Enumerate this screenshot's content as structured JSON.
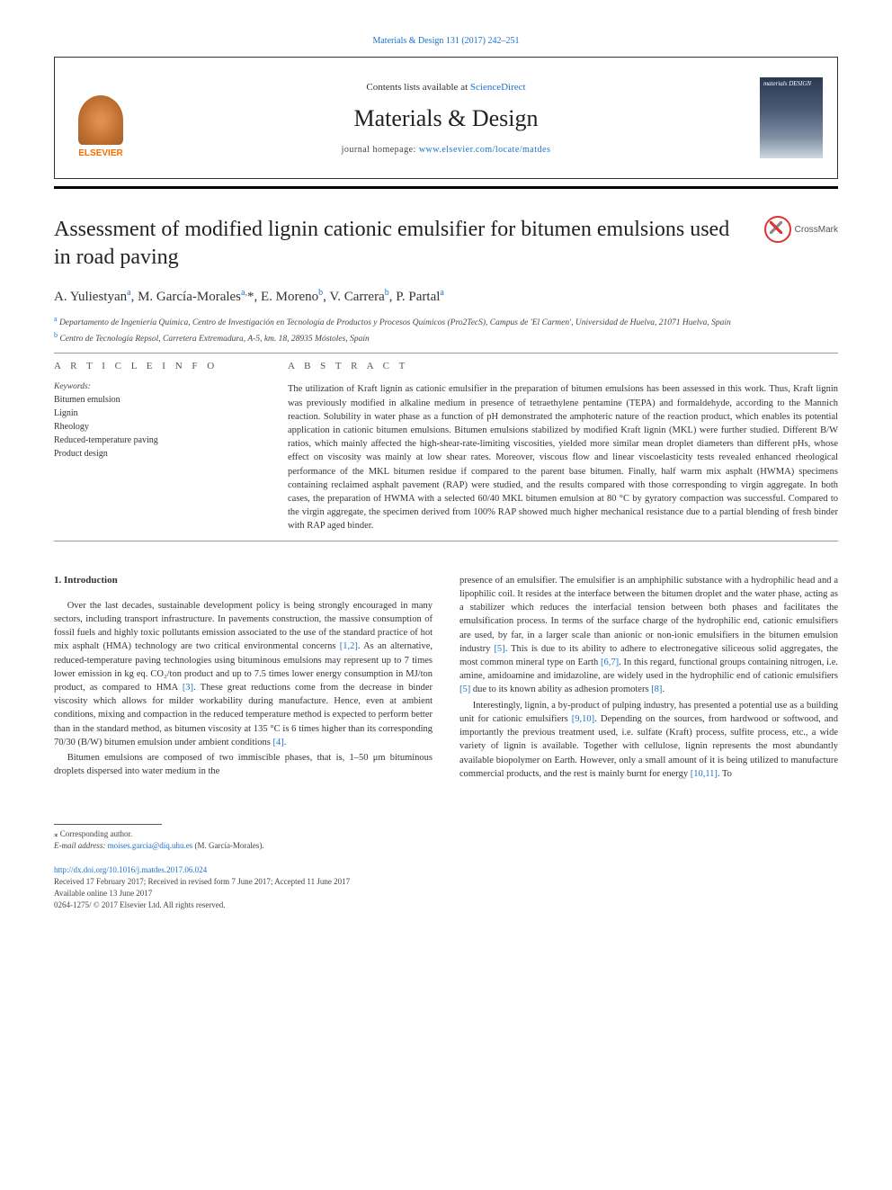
{
  "running_header": "Materials & Design 131 (2017) 242–251",
  "topbox": {
    "contents_prefix": "Contents lists available at ",
    "contents_link": "ScienceDirect",
    "journal_title": "Materials & Design",
    "homepage_prefix": "journal homepage: ",
    "homepage_link": "www.elsevier.com/locate/matdes",
    "publisher_name": "ELSEVIER"
  },
  "crossmark_label": "CrossMark",
  "article": {
    "title": "Assessment of modified lignin cationic emulsifier for bitumen emulsions used in road paving",
    "authors_html": "A. Yuliestyan<sup>a</sup>, M. García-Morales<sup>a,</sup>*, E. Moreno<sup>b</sup>, V. Carrera<sup>b</sup>, P. Partal<sup>a</sup>",
    "affiliations": [
      {
        "sup": "a",
        "text": "Departamento de Ingeniería Química, Centro de Investigación en Tecnología de Productos y Procesos Químicos (Pro2TecS), Campus de 'El Carmen', Universidad de Huelva, 21071 Huelva, Spain"
      },
      {
        "sup": "b",
        "text": "Centro de Tecnología Repsol, Carretera Extremadura, A-5, km. 18, 28935 Móstoles, Spain"
      }
    ]
  },
  "info": {
    "section_label": "A R T I C L E   I N F O",
    "keywords_label": "Keywords:",
    "keywords": [
      "Bitumen emulsion",
      "Lignin",
      "Rheology",
      "Reduced-temperature paving",
      "Product design"
    ]
  },
  "abstract": {
    "section_label": "A B S T R A C T",
    "text": "The utilization of Kraft lignin as cationic emulsifier in the preparation of bitumen emulsions has been assessed in this work. Thus, Kraft lignin was previously modified in alkaline medium in presence of tetraethylene pentamine (TEPA) and formaldehyde, according to the Mannich reaction. Solubility in water phase as a function of pH demonstrated the amphoteric nature of the reaction product, which enables its potential application in cationic bitumen emulsions. Bitumen emulsions stabilized by modified Kraft lignin (MKL) were further studied. Different B/W ratios, which mainly affected the high-shear-rate-limiting viscosities, yielded more similar mean droplet diameters than different pHs, whose effect on viscosity was mainly at low shear rates. Moreover, viscous flow and linear viscoelasticity tests revealed enhanced rheological performance of the MKL bitumen residue if compared to the parent base bitumen. Finally, half warm mix asphalt (HWMA) specimens containing reclaimed asphalt pavement (RAP) were studied, and the results compared with those corresponding to virgin aggregate. In both cases, the preparation of HWMA with a selected 60/40 MKL bitumen emulsion at 80 °C by gyratory compaction was successful. Compared to the virgin aggregate, the specimen derived from 100% RAP showed much higher mechanical resistance due to a partial blending of fresh binder with RAP aged binder."
  },
  "body": {
    "section_number_title": "1. Introduction",
    "left_p1": "Over the last decades, sustainable development policy is being strongly encouraged in many sectors, including transport infrastructure. In pavements construction, the massive consumption of fossil fuels and highly toxic pollutants emission associated to the use of the standard practice of hot mix asphalt (HMA) technology are two critical environmental concerns ",
    "left_p1_cite": "[1,2]",
    "left_p1_cont": ". As an alternative, reduced-temperature paving technologies using bituminous emulsions may represent up to 7 times lower emission in kg eq. CO₂/ton product and up to 7.5 times lower energy consumption in MJ/ton product, as compared to HMA ",
    "left_p1_cite2": "[3]",
    "left_p1_cont2": ". These great reductions come from the decrease in binder viscosity which allows for milder workability during manufacture. Hence, even at ambient conditions, mixing and compaction in the reduced temperature method is expected to perform better than in the standard method, as bitumen viscosity at 135 °C is 6 times higher than its corresponding 70/30 (B/W) bitumen emulsion under ambient conditions ",
    "left_p1_cite3": "[4]",
    "left_p1_end": ".",
    "left_p2": "Bitumen emulsions are composed of two immiscible phases, that is, 1–50 μm bituminous droplets dispersed into water medium in the",
    "right_p1": "presence of an emulsifier. The emulsifier is an amphiphilic substance with a hydrophilic head and a lipophilic coil. It resides at the interface between the bitumen droplet and the water phase, acting as a stabilizer which reduces the interfacial tension between both phases and facilitates the emulsification process. In terms of the surface charge of the hydrophilic end, cationic emulsifiers are used, by far, in a larger scale than anionic or non-ionic emulsifiers in the bitumen emulsion industry ",
    "right_p1_cite": "[5]",
    "right_p1_cont": ". This is due to its ability to adhere to electronegative siliceous solid aggregates, the most common mineral type on Earth ",
    "right_p1_cite2": "[6,7]",
    "right_p1_cont2": ". In this regard, functional groups containing nitrogen, i.e. amine, amidoamine and imidazoline, are widely used in the hydrophilic end of cationic emulsifiers ",
    "right_p1_cite3": "[5]",
    "right_p1_cont3": " due to its known ability as adhesion promoters ",
    "right_p1_cite4": "[8]",
    "right_p1_end": ".",
    "right_p2": "Interestingly, lignin, a by-product of pulping industry, has presented a potential use as a building unit for cationic emulsifiers ",
    "right_p2_cite": "[9,10]",
    "right_p2_cont": ". Depending on the sources, from hardwood or softwood, and importantly the previous treatment used, i.e. sulfate (Kraft) process, sulfite process, etc., a wide variety of lignin is available. Together with cellulose, lignin represents the most abundantly available biopolymer on Earth. However, only a small amount of it is being utilized to manufacture commercial products, and the rest is mainly burnt for energy ",
    "right_p2_cite2": "[10,11]",
    "right_p2_end": ". To"
  },
  "footer": {
    "corr_label": "⁎ Corresponding author.",
    "email_label": "E-mail address:",
    "email": "moises.garcia@diq.uhu.es",
    "email_name": " (M. García-Morales).",
    "doi": "http://dx.doi.org/10.1016/j.matdes.2017.06.024",
    "received": "Received 17 February 2017; Received in revised form 7 June 2017; Accepted 11 June 2017",
    "available": "Available online 13 June 2017",
    "copyright": "0264-1275/ © 2017 Elsevier Ltd. All rights reserved."
  },
  "colors": {
    "link": "#1a73cc",
    "text": "#333333",
    "rule": "#000000",
    "publisher_orange": "#ff6b00"
  }
}
